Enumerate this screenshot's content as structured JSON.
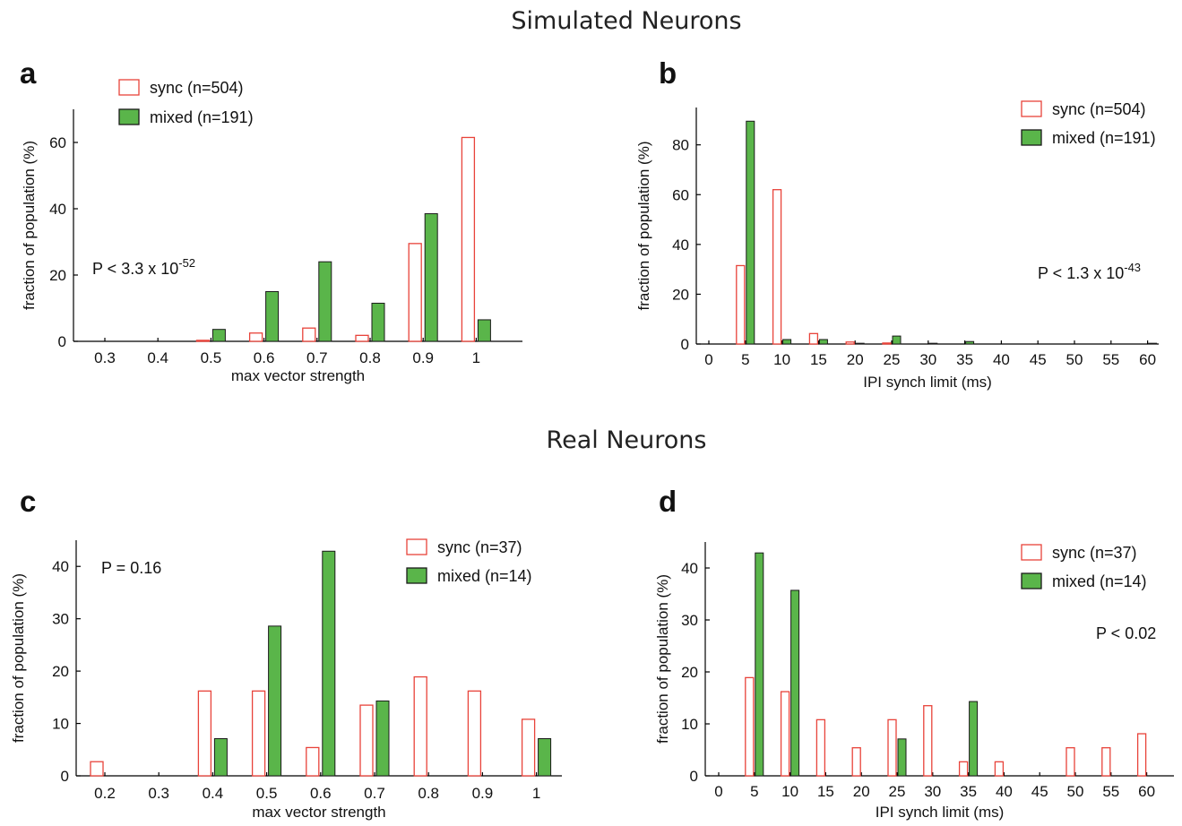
{
  "section_titles": {
    "top": "Simulated Neurons",
    "bottom": "Real Neurons"
  },
  "colors": {
    "sync": "#e8433a",
    "mixed": "#5ab54a",
    "mixed_edge": "#1a1a1a",
    "axis": "#000000"
  },
  "chart_data": [
    {
      "id": "a",
      "type": "bar",
      "panel_label": "a",
      "xlabel": "max vector strength",
      "ylabel": "fraction of population (%)",
      "categories": [
        "0.3",
        "0.4",
        "0.5",
        "0.6",
        "0.7",
        "0.8",
        "0.9",
        "1"
      ],
      "ylim": [
        0,
        70
      ],
      "yticks": [
        "0",
        "20",
        "40",
        "60"
      ],
      "ytick_values": [
        0,
        20,
        40,
        60
      ],
      "series": [
        {
          "name": "sync (n=504)",
          "values": [
            0,
            0,
            0.3,
            2.5,
            4,
            1.8,
            29.5,
            61.5
          ]
        },
        {
          "name": "mixed (n=191)",
          "values": [
            0,
            0,
            3.6,
            15,
            24,
            11.5,
            38.5,
            6.5
          ]
        }
      ],
      "annotation": {
        "text": "P < 3.3 x 10",
        "sup": "-52"
      },
      "legend_position": "top-left"
    },
    {
      "id": "b",
      "type": "bar",
      "panel_label": "b",
      "xlabel": "IPI synch limit (ms)",
      "ylabel": "fraction of population (%)",
      "categories": [
        "0",
        "5",
        "10",
        "15",
        "20",
        "25",
        "30",
        "35",
        "40",
        "45",
        "50",
        "55",
        "60"
      ],
      "ylim": [
        0,
        95
      ],
      "yticks": [
        "0",
        "20",
        "40",
        "60",
        "80"
      ],
      "ytick_values": [
        0,
        20,
        40,
        60,
        80
      ],
      "series": [
        {
          "name": "sync (n=504)",
          "values": [
            0,
            31.5,
            62,
            4.2,
            0.8,
            0.4,
            0,
            0,
            0,
            0,
            0,
            0,
            0
          ]
        },
        {
          "name": "mixed (n=191)",
          "values": [
            0,
            89.5,
            1.8,
            1.8,
            0.3,
            3.2,
            0.3,
            1,
            0,
            0,
            0,
            0,
            0.3
          ]
        }
      ],
      "annotation": {
        "text": "P < 1.3 x 10",
        "sup": "-43"
      },
      "legend_position": "top-right"
    },
    {
      "id": "c",
      "type": "bar",
      "panel_label": "c",
      "xlabel": "max vector strength",
      "ylabel": "fraction of population (%)",
      "categories": [
        "0.2",
        "0.3",
        "0.4",
        "0.5",
        "0.6",
        "0.7",
        "0.8",
        "0.9",
        "1"
      ],
      "ylim": [
        0,
        45
      ],
      "yticks": [
        "0",
        "10",
        "20",
        "30",
        "40"
      ],
      "ytick_values": [
        0,
        10,
        20,
        30,
        40
      ],
      "series": [
        {
          "name": "sync (n=37)",
          "values": [
            2.7,
            0,
            16.2,
            16.2,
            5.4,
            13.5,
            18.9,
            16.2,
            10.8
          ]
        },
        {
          "name": "mixed (n=14)",
          "values": [
            0,
            0,
            7.1,
            28.6,
            42.9,
            14.3,
            0,
            0,
            7.1
          ]
        }
      ],
      "annotation": {
        "text": "P = 0.16",
        "sup": ""
      },
      "legend_position": "top-right"
    },
    {
      "id": "d",
      "type": "bar",
      "panel_label": "d",
      "xlabel": "IPI synch limit (ms)",
      "ylabel": "fraction of population (%)",
      "categories": [
        "0",
        "5",
        "10",
        "15",
        "20",
        "25",
        "30",
        "35",
        "40",
        "45",
        "50",
        "55",
        "60"
      ],
      "ylim": [
        0,
        45
      ],
      "yticks": [
        "0",
        "10",
        "20",
        "30",
        "40"
      ],
      "ytick_values": [
        0,
        10,
        20,
        30,
        40
      ],
      "series": [
        {
          "name": "sync (n=37)",
          "values": [
            0,
            18.9,
            16.2,
            10.8,
            5.4,
            10.8,
            13.5,
            2.7,
            2.7,
            0,
            5.4,
            5.4,
            8.1
          ]
        },
        {
          "name": "mixed (n=14)",
          "values": [
            0,
            42.9,
            35.7,
            0,
            0,
            7.1,
            0,
            14.3,
            0,
            0,
            0,
            0,
            0
          ]
        }
      ],
      "annotation": {
        "text": "P < 0.02",
        "sup": ""
      },
      "legend_position": "top-right"
    }
  ]
}
